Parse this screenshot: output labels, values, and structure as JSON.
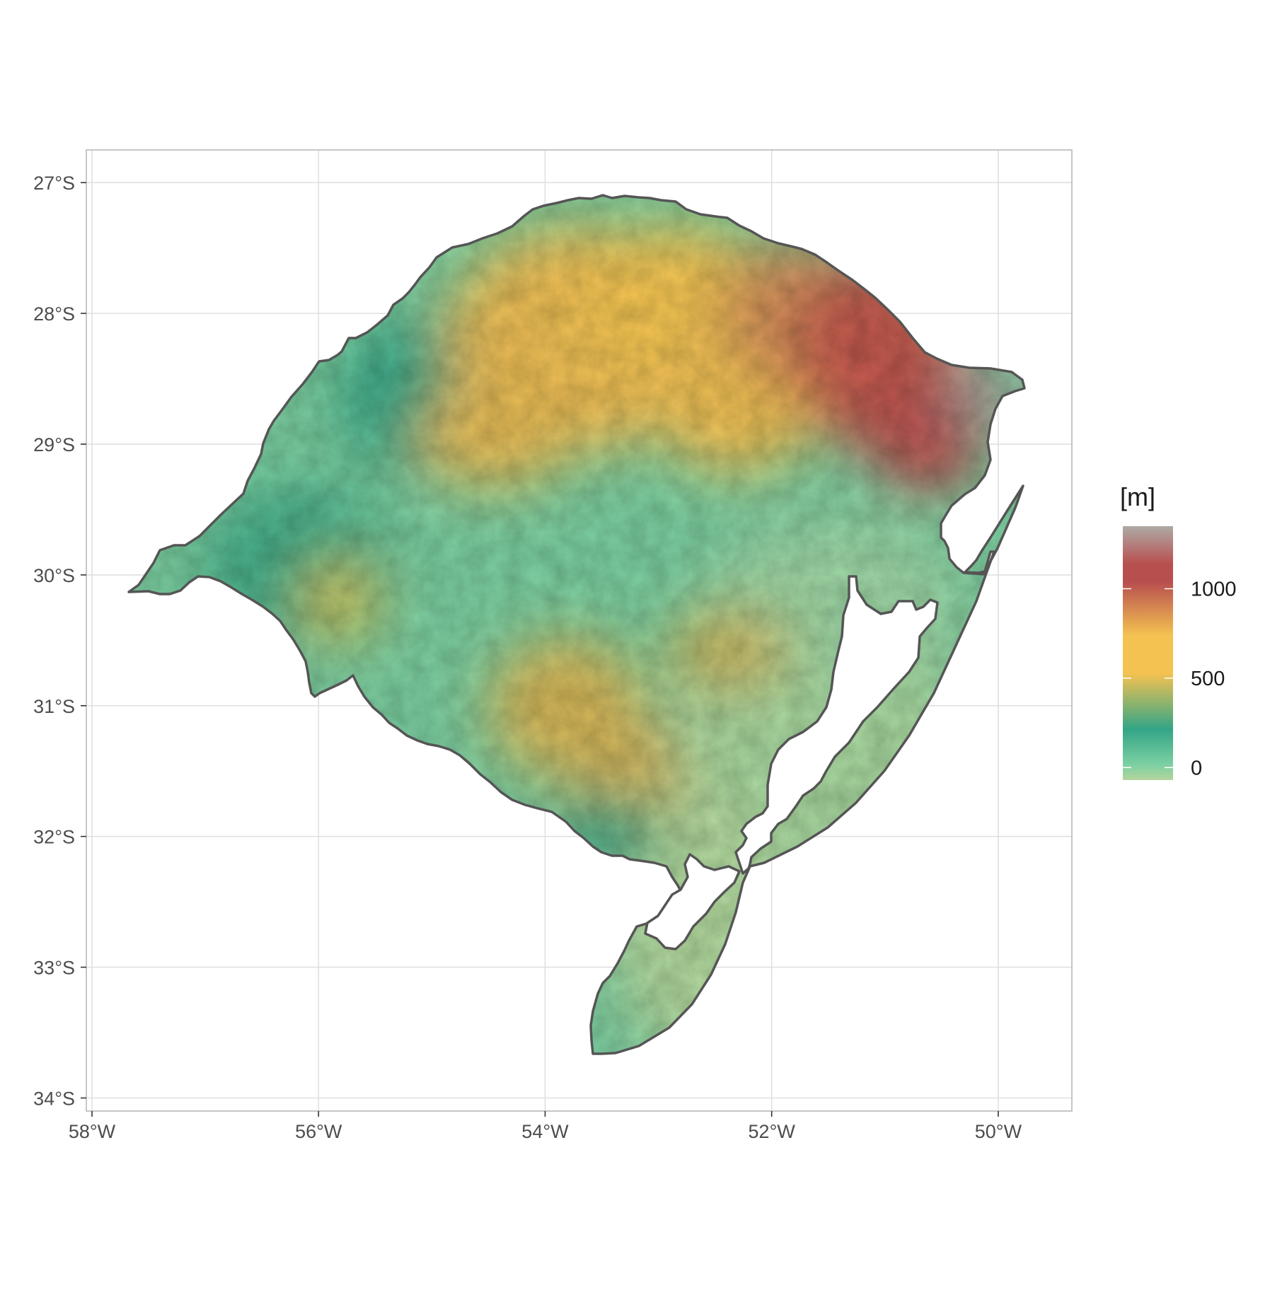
{
  "chart_data": {
    "type": "map-raster",
    "region": "Rio Grande do Sul elevation",
    "x_axis": {
      "ticks": [
        -58,
        -56,
        -54,
        -52,
        -50
      ],
      "labels": [
        "58°W",
        "56°W",
        "54°W",
        "52°W",
        "50°W"
      ],
      "range": [
        -58.05,
        -49.35
      ]
    },
    "y_axis": {
      "ticks": [
        -27,
        -28,
        -29,
        -30,
        -31,
        -32,
        -33,
        -34
      ],
      "labels": [
        "27°S",
        "28°S",
        "29°S",
        "30°S",
        "31°S",
        "32°S",
        "33°S",
        "34°S"
      ],
      "range": [
        -34.1,
        -26.75
      ]
    },
    "grid": true,
    "legend": {
      "title": "[m]",
      "placement": "right",
      "breaks": [
        0,
        500,
        1000
      ],
      "labels": [
        "0",
        "500",
        "1000"
      ],
      "limits": [
        -70,
        1350
      ],
      "colors": [
        "#b4d49c",
        "#7dd0a3",
        "#33a586",
        "#f4c251",
        "#b84f4f",
        "#aeaaa5"
      ]
    },
    "colors": {
      "outline": "#555555",
      "panel_border": "#b3b3b3",
      "grid": "#e0e0e0",
      "lagoon": "#ffffff"
    }
  }
}
